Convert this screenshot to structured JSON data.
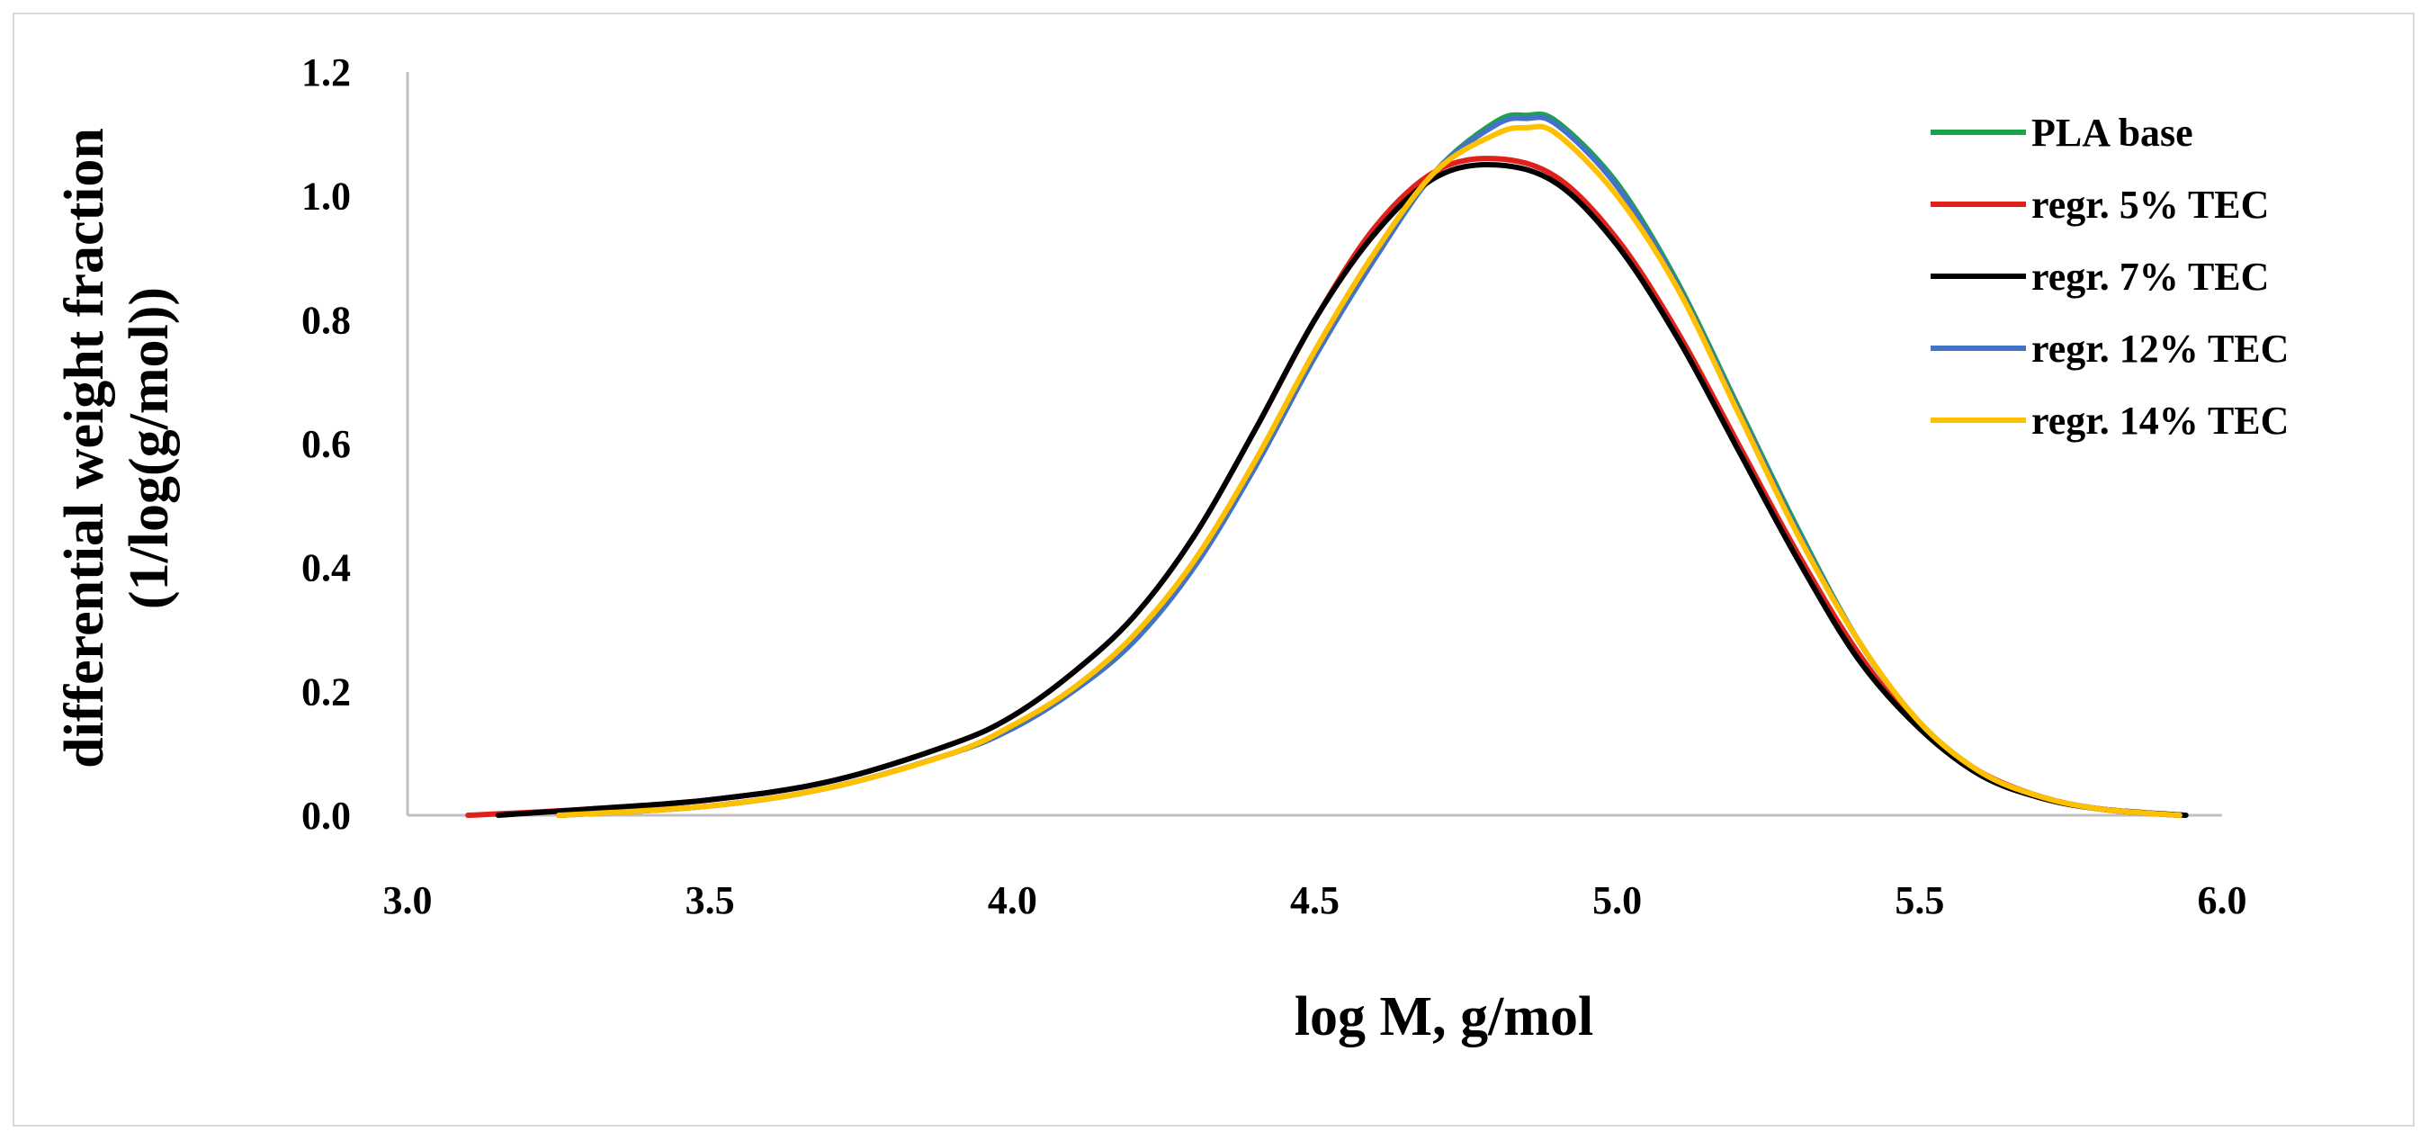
{
  "chart_data": {
    "type": "line",
    "title": "",
    "xlabel": "log M, g/mol",
    "ylabel_line1": "differential weight fraction",
    "ylabel_line2": "(1/log(g/mol))",
    "xlim": [
      3.0,
      6.0
    ],
    "ylim": [
      0.0,
      1.2
    ],
    "xticks": [
      "3.0",
      "3.5",
      "4.0",
      "4.5",
      "5.0",
      "5.5",
      "6.0"
    ],
    "yticks": [
      "0.0",
      "0.2",
      "0.4",
      "0.6",
      "0.8",
      "1.0",
      "1.2"
    ],
    "grid": false,
    "legend_position": "top-right",
    "series": [
      {
        "name": "PLA base",
        "color": "#1aa34a",
        "x": [
          3.25,
          3.5,
          3.7,
          3.9,
          4.0,
          4.1,
          4.2,
          4.3,
          4.4,
          4.5,
          4.6,
          4.7,
          4.8,
          4.85,
          4.9,
          5.0,
          5.1,
          5.2,
          5.3,
          5.4,
          5.5,
          5.6,
          5.7,
          5.8,
          5.93
        ],
        "y": [
          0.0,
          0.015,
          0.045,
          0.1,
          0.14,
          0.2,
          0.28,
          0.4,
          0.56,
          0.74,
          0.9,
          1.04,
          1.12,
          1.13,
          1.12,
          1.02,
          0.86,
          0.66,
          0.46,
          0.28,
          0.15,
          0.07,
          0.03,
          0.01,
          0.0
        ]
      },
      {
        "name": "regr. 5% TEC",
        "color": "#e0201b",
        "x": [
          3.1,
          3.3,
          3.5,
          3.7,
          3.9,
          4.0,
          4.1,
          4.2,
          4.3,
          4.4,
          4.5,
          4.6,
          4.7,
          4.8,
          4.9,
          5.0,
          5.1,
          5.2,
          5.3,
          5.4,
          5.5,
          5.6,
          5.7,
          5.8,
          5.93
        ],
        "y": [
          0.0,
          0.01,
          0.025,
          0.055,
          0.115,
          0.16,
          0.23,
          0.32,
          0.45,
          0.62,
          0.8,
          0.95,
          1.04,
          1.06,
          1.03,
          0.93,
          0.78,
          0.6,
          0.42,
          0.26,
          0.14,
          0.07,
          0.03,
          0.01,
          0.0
        ]
      },
      {
        "name": "regr. 7% TEC",
        "color": "#000000",
        "x": [
          3.15,
          3.3,
          3.5,
          3.7,
          3.9,
          4.0,
          4.1,
          4.2,
          4.3,
          4.4,
          4.5,
          4.6,
          4.7,
          4.8,
          4.9,
          5.0,
          5.1,
          5.2,
          5.3,
          5.4,
          5.5,
          5.6,
          5.7,
          5.8,
          5.94
        ],
        "y": [
          0.0,
          0.01,
          0.025,
          0.055,
          0.115,
          0.16,
          0.23,
          0.32,
          0.45,
          0.62,
          0.8,
          0.94,
          1.03,
          1.05,
          1.02,
          0.92,
          0.77,
          0.59,
          0.41,
          0.25,
          0.14,
          0.065,
          0.028,
          0.01,
          0.0
        ]
      },
      {
        "name": "regr. 12% TEC",
        "color": "#4472c4",
        "x": [
          3.25,
          3.5,
          3.7,
          3.9,
          4.0,
          4.1,
          4.2,
          4.3,
          4.4,
          4.5,
          4.6,
          4.7,
          4.8,
          4.85,
          4.9,
          5.0,
          5.1,
          5.2,
          5.3,
          5.4,
          5.5,
          5.6,
          5.7,
          5.8,
          5.93
        ],
        "y": [
          0.0,
          0.015,
          0.045,
          0.1,
          0.14,
          0.2,
          0.28,
          0.4,
          0.56,
          0.74,
          0.9,
          1.04,
          1.115,
          1.125,
          1.115,
          1.015,
          0.855,
          0.655,
          0.455,
          0.28,
          0.15,
          0.07,
          0.03,
          0.01,
          0.0
        ]
      },
      {
        "name": "regr. 14% TEC",
        "color": "#ffc000",
        "x": [
          3.25,
          3.5,
          3.7,
          3.9,
          4.0,
          4.1,
          4.2,
          4.3,
          4.4,
          4.5,
          4.6,
          4.7,
          4.8,
          4.85,
          4.9,
          5.0,
          5.1,
          5.2,
          5.3,
          5.4,
          5.5,
          5.6,
          5.7,
          5.8,
          5.93
        ],
        "y": [
          0.0,
          0.015,
          0.045,
          0.1,
          0.145,
          0.205,
          0.29,
          0.41,
          0.57,
          0.75,
          0.91,
          1.04,
          1.1,
          1.11,
          1.1,
          1.0,
          0.85,
          0.65,
          0.45,
          0.28,
          0.15,
          0.07,
          0.03,
          0.01,
          0.0
        ]
      }
    ]
  }
}
